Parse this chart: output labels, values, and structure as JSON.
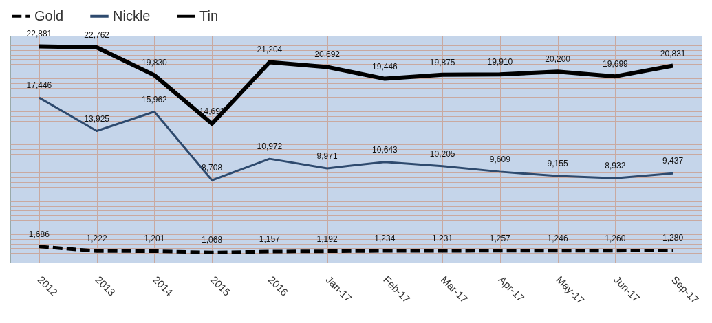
{
  "chart_data": {
    "type": "line",
    "categories": [
      "2012",
      "2013",
      "2014",
      "2015",
      "2016",
      "Jan-17",
      "Feb-17",
      "Mar-17",
      "Apr-17",
      "May-17",
      "Jun-17",
      "Sep-17"
    ],
    "series": [
      {
        "name": "Gold",
        "color": "#000000",
        "line_style": "dashed",
        "values": [
          1686,
          1222,
          1201,
          1068,
          1157,
          1192,
          1234,
          1231,
          1257,
          1246,
          1260,
          1280
        ],
        "value_labels": [
          "1,686",
          "1,222",
          "1,201",
          "1,068",
          "1,157",
          "1,192",
          "1,234",
          "1,231",
          "1,257",
          "1,246",
          "1,260",
          "1,280"
        ]
      },
      {
        "name": "Nickle",
        "color": "#2e4a6e",
        "line_style": "solid",
        "values": [
          17446,
          13925,
          15962,
          8708,
          10972,
          9971,
          10643,
          10205,
          9609,
          9155,
          8932,
          9437
        ],
        "value_labels": [
          "17,446",
          "13,925",
          "15,962",
          "8,708",
          "10,972",
          "9,971",
          "10,643",
          "10,205",
          "9,609",
          "9,155",
          "8,932",
          "9,437"
        ]
      },
      {
        "name": "Tin",
        "color": "#000000",
        "line_style": "solid",
        "values": [
          22881,
          22762,
          19830,
          14692,
          21204,
          20692,
          19446,
          19875,
          19910,
          20200,
          19699,
          20831
        ],
        "value_labels": [
          "22,881",
          "22,762",
          "19,830",
          "14,692",
          "21,204",
          "20,692",
          "19,446",
          "19,875",
          "19,910",
          "20,200",
          "19,699",
          "20,831"
        ]
      }
    ],
    "grid": true,
    "legend": "top",
    "tick_labels": "x",
    "marker": "none"
  }
}
